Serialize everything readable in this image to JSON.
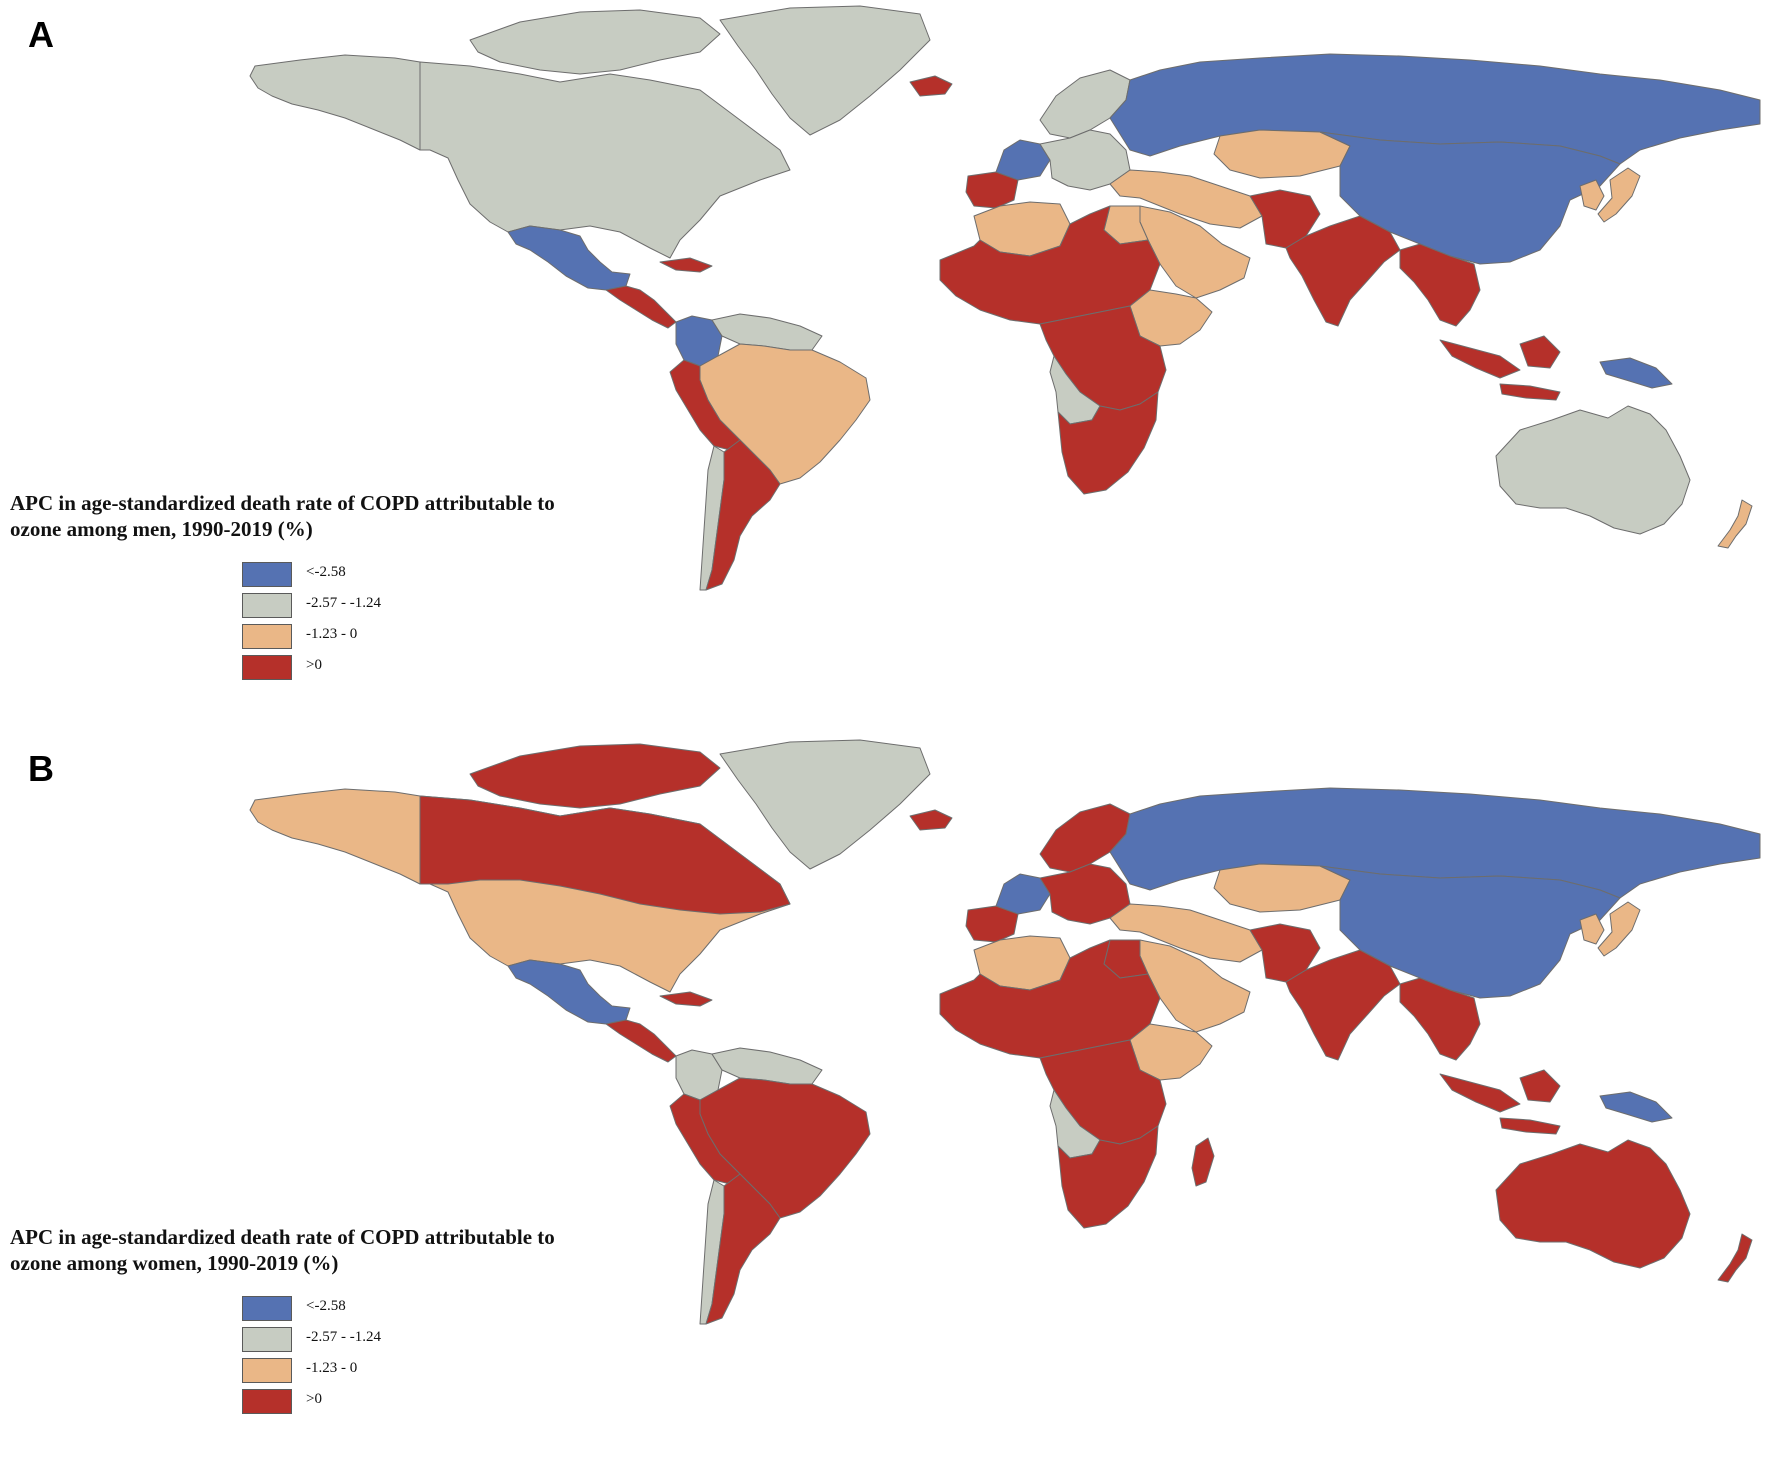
{
  "colors": {
    "lt_neg258": "#5572b2",
    "neg257_neg124": "#c7ccc2",
    "neg123_0": "#eab787",
    "gt_0": "#b5302a",
    "border": "#6d6d6d"
  },
  "legend_items": [
    {
      "label": "<-2.58",
      "class": "lt_neg258"
    },
    {
      "label": "-2.57 - -1.24",
      "class": "neg257_neg124"
    },
    {
      "label": "-1.23 - 0",
      "class": "neg123_0"
    },
    {
      "label": ">0",
      "class": "gt_0"
    }
  ],
  "panels": [
    {
      "letter": "A",
      "legend_title_line1": "APC in age-standardized death rate of COPD attributable to",
      "legend_title_line2": "ozone among men, 1990-2019 (%)",
      "regions": {
        "north_america": "neg257_neg124",
        "alaska": "neg257_neg124",
        "canadian_islands": "neg257_neg124",
        "greenland": "neg257_neg124",
        "iceland": "gt_0",
        "mexico": "lt_neg258",
        "central_america": "gt_0",
        "caribbean": "gt_0",
        "colombia": "lt_neg258",
        "venezuela_guianas": "neg257_neg124",
        "brazil": "neg123_0",
        "peru_bolivia": "gt_0",
        "chile": "neg257_neg124",
        "argentina": "gt_0",
        "western_europe": "lt_neg258",
        "iberia": "gt_0",
        "scandinavia": "neg257_neg124",
        "central_europe": "neg257_neg124",
        "russia": "lt_neg258",
        "kazakhstan": "neg123_0",
        "china_mongolia": "lt_neg258",
        "turkey_iran": "neg123_0",
        "middle_east": "neg123_0",
        "afghanistan_pakistan": "gt_0",
        "india": "gt_0",
        "southeast_asia": "gt_0",
        "korea_japan": "neg123_0",
        "north_africa": "neg123_0",
        "sahel_west_africa": "gt_0",
        "egypt": "neg123_0",
        "east_africa": "neg123_0",
        "central_africa": "gt_0",
        "angola": "neg257_neg124",
        "southern_africa": "gt_0",
        "indonesia": "gt_0",
        "new_guinea": "lt_neg258",
        "australia": "neg257_neg124",
        "new_zealand": "neg123_0"
      }
    },
    {
      "letter": "B",
      "legend_title_line1": "APC in age-standardized death rate of COPD attributable to",
      "legend_title_line2": "ozone among women, 1990-2019 (%)",
      "regions": {
        "north_america": "neg123_0",
        "alaska": "neg123_0",
        "canada": "gt_0",
        "canadian_islands": "gt_0",
        "greenland": "neg257_neg124",
        "iceland": "gt_0",
        "mexico": "lt_neg258",
        "central_america": "gt_0",
        "caribbean": "gt_0",
        "colombia": "neg257_neg124",
        "venezuela_guianas": "neg257_neg124",
        "brazil": "gt_0",
        "peru_bolivia": "gt_0",
        "chile": "neg257_neg124",
        "argentina": "gt_0",
        "western_europe": "lt_neg258",
        "iberia": "gt_0",
        "scandinavia": "gt_0",
        "central_europe": "gt_0",
        "russia": "lt_neg258",
        "kazakhstan": "neg123_0",
        "china_mongolia": "lt_neg258",
        "turkey_iran": "neg123_0",
        "middle_east": "neg123_0",
        "afghanistan_pakistan": "gt_0",
        "india": "gt_0",
        "southeast_asia": "gt_0",
        "korea_japan": "neg123_0",
        "north_africa": "neg123_0",
        "sahel_west_africa": "gt_0",
        "egypt": "gt_0",
        "east_africa": "neg123_0",
        "central_africa": "gt_0",
        "angola": "neg257_neg124",
        "southern_africa": "gt_0",
        "madagascar": "gt_0",
        "indonesia": "gt_0",
        "new_guinea": "lt_neg258",
        "australia": "gt_0",
        "new_zealand": "gt_0"
      }
    }
  ]
}
